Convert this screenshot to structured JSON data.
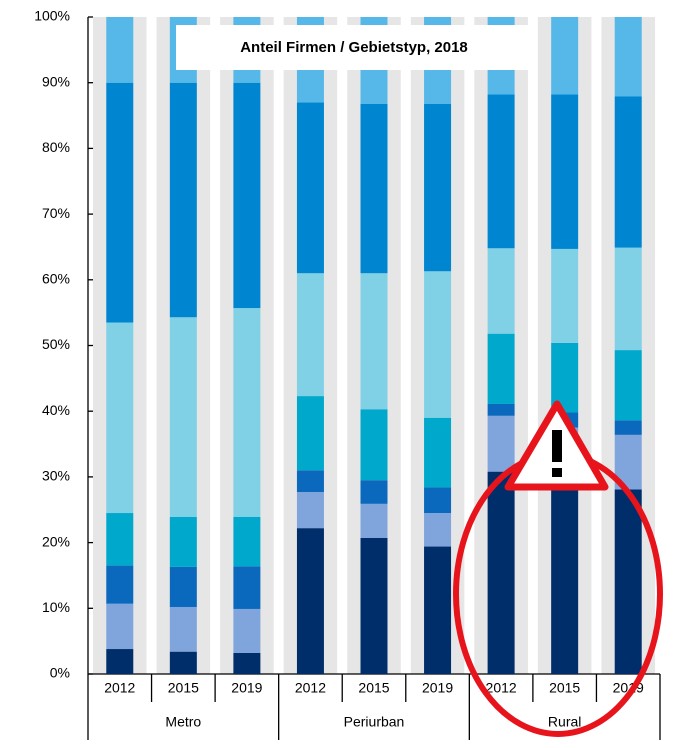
{
  "chart_data": {
    "type": "stacked_bar",
    "title": "Anteil Firmen / Gebietstyp, 2018",
    "categories": [
      "2012",
      "2015",
      "2019",
      "2012",
      "2015",
      "2019",
      "2012",
      "2015",
      "2019"
    ],
    "groups": [
      "Metro",
      "Periurban",
      "Rural"
    ],
    "series": [
      {
        "color": "#002e6b",
        "values": [
          3.8,
          3.4,
          3.2,
          22.2,
          20.7,
          19.4,
          30.8,
          29.5,
          28.1
        ]
      },
      {
        "color": "#7fa5dc",
        "values": [
          6.9,
          6.8,
          6.7,
          5.5,
          5.2,
          5.1,
          8.5,
          8.0,
          8.3
        ]
      },
      {
        "color": "#0b69bd",
        "values": [
          5.8,
          6.1,
          6.5,
          3.3,
          3.6,
          3.9,
          1.8,
          2.3,
          2.2
        ]
      },
      {
        "color": "#00a8cb",
        "values": [
          8.0,
          7.6,
          7.5,
          11.3,
          10.8,
          10.6,
          10.7,
          10.6,
          10.7
        ]
      },
      {
        "color": "#80d0e6",
        "values": [
          29.0,
          30.4,
          31.8,
          18.7,
          20.7,
          22.3,
          13.0,
          14.3,
          15.6
        ]
      },
      {
        "color": "#0086d1",
        "values": [
          36.5,
          35.7,
          34.3,
          26.0,
          25.8,
          25.5,
          23.4,
          23.5,
          23.0
        ]
      },
      {
        "color": "#55b8e8",
        "values": [
          10.0,
          10.0,
          10.0,
          13.0,
          13.2,
          13.2,
          11.8,
          11.8,
          12.1
        ]
      }
    ],
    "ylim": [
      0,
      100
    ],
    "yticks": [
      {
        "value": 0,
        "label": "0%"
      },
      {
        "value": 10,
        "label": "10%"
      },
      {
        "value": 20,
        "label": "20%"
      },
      {
        "value": 30,
        "label": "30%"
      },
      {
        "value": 40,
        "label": "40%"
      },
      {
        "value": 50,
        "label": "50%"
      },
      {
        "value": 60,
        "label": "60%"
      },
      {
        "value": 70,
        "label": "70%"
      },
      {
        "value": 80,
        "label": "80%"
      },
      {
        "value": 90,
        "label": "90%"
      },
      {
        "value": 100,
        "label": "100%"
      }
    ]
  }
}
